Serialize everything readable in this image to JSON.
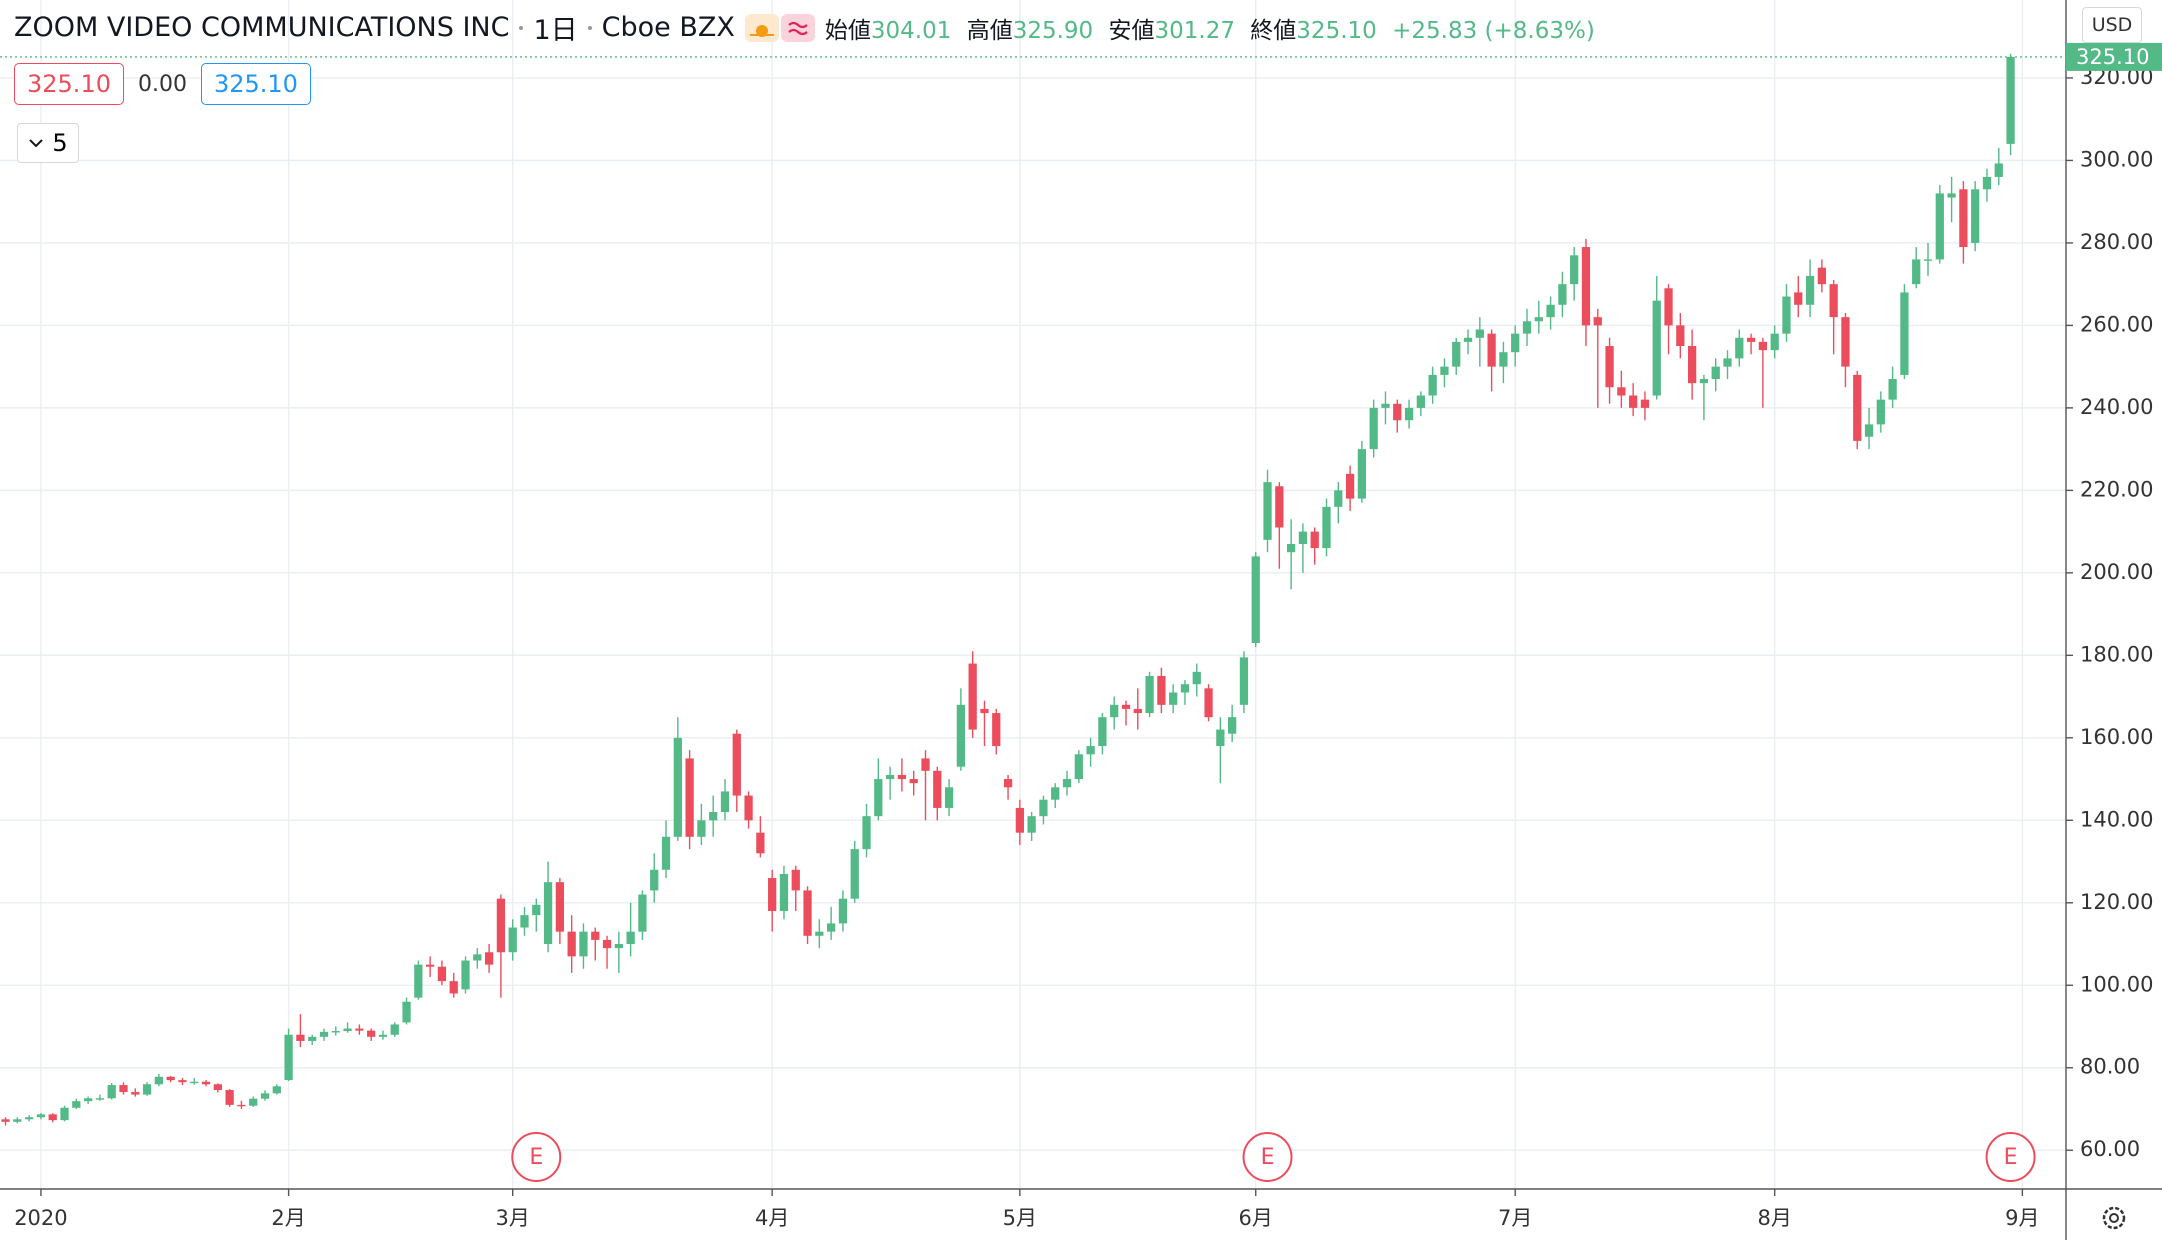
{
  "chart_data": {
    "type": "candlestick",
    "title": "ZOOM VIDEO COMMUNICATIONS INC",
    "interval": "1日",
    "exchange": "Cboe BZX",
    "legend": {
      "open_label": "始値",
      "open": "304.01",
      "high_label": "高値",
      "high": "325.90",
      "low_label": "安値",
      "low": "301.27",
      "close_label": "終値",
      "close": "325.10",
      "change": "+25.83 (+8.63%)"
    },
    "price_boxes": [
      "325.10",
      "0.00",
      "325.10"
    ],
    "study_count": "5",
    "currency": "USD",
    "last_price_label": "325.10",
    "up_color": "#53b987",
    "down_color": "#eb4d5c",
    "grid": true,
    "ylim": [
      50.6,
      338.9
    ],
    "yticks": [
      {
        "value": 60,
        "label": "60.00"
      },
      {
        "value": 80,
        "label": "80.00"
      },
      {
        "value": 100,
        "label": "100.00"
      },
      {
        "value": 120,
        "label": "120.00"
      },
      {
        "value": 140,
        "label": "140.00"
      },
      {
        "value": 160,
        "label": "160.00"
      },
      {
        "value": 180,
        "label": "180.00"
      },
      {
        "value": 200,
        "label": "200.00"
      },
      {
        "value": 220,
        "label": "220.00"
      },
      {
        "value": 240,
        "label": "240.00"
      },
      {
        "value": 260,
        "label": "260.00"
      },
      {
        "value": 280,
        "label": "280.00"
      },
      {
        "value": 300,
        "label": "300.00"
      },
      {
        "value": 320,
        "label": "320.00"
      }
    ],
    "xlim": [
      -0.47,
      174.7
    ],
    "xticks": [
      {
        "value": 3,
        "label": "2020"
      },
      {
        "value": 24,
        "label": "2月"
      },
      {
        "value": 43,
        "label": "3月"
      },
      {
        "value": 65,
        "label": "4月"
      },
      {
        "value": 86,
        "label": "5月"
      },
      {
        "value": 106,
        "label": "6月"
      },
      {
        "value": 128,
        "label": "7月"
      },
      {
        "value": 150,
        "label": "8月"
      },
      {
        "value": 171,
        "label": "9月"
      }
    ],
    "events": [
      {
        "index": 45,
        "label": "E"
      },
      {
        "index": 107,
        "label": "E"
      },
      {
        "index": 170,
        "label": "E"
      }
    ],
    "ohlc": [
      [
        67.5,
        68,
        66,
        66.9
      ],
      [
        66.9,
        68,
        66.5,
        67.5
      ],
      [
        67.5,
        68.5,
        67,
        68
      ],
      [
        68,
        69,
        67.5,
        68.7
      ],
      [
        68.7,
        69,
        66.8,
        67.3
      ],
      [
        67.3,
        70.8,
        67,
        70.3
      ],
      [
        70.3,
        72.5,
        70,
        71.9
      ],
      [
        71.9,
        73,
        71.2,
        72.6
      ],
      [
        72.6,
        73.5,
        72,
        72.6
      ],
      [
        72.6,
        76.3,
        72.3,
        75.8
      ],
      [
        75.8,
        76.5,
        73.5,
        74.1
      ],
      [
        74.1,
        75,
        73,
        73.5
      ],
      [
        73.5,
        76.5,
        73.2,
        76
      ],
      [
        76,
        78.5,
        75.5,
        77.8
      ],
      [
        77.8,
        78,
        76.5,
        77
      ],
      [
        77,
        77.5,
        75.8,
        76.5
      ],
      [
        76.5,
        77.5,
        75.9,
        76.6
      ],
      [
        76.6,
        77,
        75.5,
        76
      ],
      [
        76,
        76.2,
        74,
        74.6
      ],
      [
        74.6,
        74.8,
        70.5,
        71
      ],
      [
        71,
        72,
        70,
        70.8
      ],
      [
        70.8,
        73,
        70.5,
        72.5
      ],
      [
        72.5,
        74.5,
        72,
        73.8
      ],
      [
        73.8,
        76,
        73.5,
        75.5
      ],
      [
        77,
        89.5,
        76.8,
        88
      ],
      [
        88,
        93,
        85,
        86.5
      ],
      [
        86.5,
        88,
        85.5,
        87.5
      ],
      [
        87.5,
        89.5,
        86.5,
        88.7
      ],
      [
        88.7,
        90,
        87.8,
        88.9
      ],
      [
        88.9,
        91,
        88.5,
        89.5
      ],
      [
        89.5,
        90.5,
        88,
        89
      ],
      [
        89,
        89.5,
        86.5,
        87.5
      ],
      [
        87.5,
        89,
        86.8,
        88
      ],
      [
        88,
        91,
        87.5,
        90.5
      ],
      [
        91,
        97,
        90.5,
        96
      ],
      [
        97,
        106,
        96.5,
        105
      ],
      [
        105,
        107,
        102,
        104.5
      ],
      [
        104.5,
        106,
        100,
        101
      ],
      [
        101,
        103,
        97,
        98
      ],
      [
        99,
        107,
        98,
        106
      ],
      [
        106,
        109,
        104,
        107.5
      ],
      [
        108,
        110,
        103,
        105
      ],
      [
        121,
        122,
        97,
        108
      ],
      [
        108,
        116,
        106,
        114
      ],
      [
        114,
        119,
        112,
        117
      ],
      [
        117,
        121,
        113,
        119.5
      ],
      [
        110,
        130,
        108,
        125
      ],
      [
        125,
        126,
        110,
        113
      ],
      [
        113,
        117,
        103,
        107
      ],
      [
        107,
        115,
        104,
        113
      ],
      [
        113,
        114,
        106,
        111
      ],
      [
        111,
        112,
        104,
        109
      ],
      [
        109,
        113,
        103,
        110
      ],
      [
        110,
        120,
        107,
        113
      ],
      [
        113,
        123,
        111,
        122
      ],
      [
        123,
        132,
        120,
        128
      ],
      [
        128,
        140,
        126,
        136
      ],
      [
        136,
        165,
        135,
        160
      ],
      [
        155,
        157,
        133,
        136
      ],
      [
        136,
        144,
        134,
        140
      ],
      [
        140,
        146,
        136,
        142
      ],
      [
        142,
        150,
        140,
        147
      ],
      [
        161,
        162,
        142,
        146
      ],
      [
        146,
        147,
        138,
        140
      ],
      [
        137,
        141,
        131,
        132
      ],
      [
        126,
        128,
        113,
        118
      ],
      [
        118,
        129,
        116,
        127
      ],
      [
        128,
        129,
        118,
        123
      ],
      [
        123,
        124,
        110,
        112
      ],
      [
        112,
        116,
        109,
        113
      ],
      [
        113,
        119,
        111,
        115
      ],
      [
        115,
        123,
        113,
        121
      ],
      [
        121,
        135,
        120,
        133
      ],
      [
        133,
        144,
        131,
        141
      ],
      [
        141,
        155,
        140,
        150
      ],
      [
        150,
        153,
        145,
        151
      ],
      [
        151,
        155,
        147,
        150
      ],
      [
        150,
        152,
        146,
        149
      ],
      [
        155,
        157,
        140,
        152
      ],
      [
        152,
        153,
        140,
        143
      ],
      [
        143,
        150,
        141,
        148
      ],
      [
        153,
        172,
        152,
        168
      ],
      [
        178,
        181,
        160,
        162
      ],
      [
        167,
        169,
        158,
        166
      ],
      [
        166,
        167,
        156,
        158
      ],
      [
        150,
        151,
        145,
        148
      ],
      [
        143,
        145,
        134,
        137
      ],
      [
        137,
        142,
        135,
        141
      ],
      [
        141,
        146,
        139,
        145
      ],
      [
        145,
        149,
        143,
        148
      ],
      [
        148,
        152,
        146,
        150
      ],
      [
        150,
        157,
        149,
        156
      ],
      [
        156,
        160,
        153,
        158
      ],
      [
        158,
        166,
        156,
        165
      ],
      [
        165,
        170,
        162,
        168
      ],
      [
        168,
        169,
        163,
        167
      ],
      [
        167,
        172,
        162,
        166
      ],
      [
        166,
        176,
        165,
        175
      ],
      [
        175,
        177,
        166,
        168
      ],
      [
        168,
        173,
        166,
        171
      ],
      [
        171,
        174,
        168,
        173
      ],
      [
        173,
        178,
        170,
        176
      ],
      [
        172,
        173,
        164,
        165
      ],
      [
        158,
        165,
        149,
        162
      ],
      [
        161,
        168,
        159,
        165
      ],
      [
        168,
        181,
        166,
        179.5
      ],
      [
        183,
        205,
        182,
        204
      ],
      [
        208,
        225,
        205,
        222
      ],
      [
        221,
        222,
        201,
        211
      ],
      [
        205,
        213,
        196,
        207
      ],
      [
        207,
        212,
        200,
        210
      ],
      [
        210,
        211,
        202,
        206
      ],
      [
        206,
        218,
        204,
        216
      ],
      [
        216,
        222,
        212,
        220
      ],
      [
        224,
        226,
        215,
        218
      ],
      [
        218,
        232,
        217,
        230
      ],
      [
        230,
        242,
        228,
        240
      ],
      [
        240,
        244,
        236,
        241
      ],
      [
        241,
        242,
        234,
        237
      ],
      [
        237,
        242,
        235,
        240
      ],
      [
        240,
        244,
        238,
        243
      ],
      [
        243,
        250,
        241,
        248
      ],
      [
        248,
        252,
        245,
        250
      ],
      [
        250,
        257,
        248,
        256
      ],
      [
        256,
        259,
        253,
        257
      ],
      [
        257,
        262,
        250,
        259
      ],
      [
        258,
        259,
        244,
        250
      ],
      [
        250,
        256,
        246,
        253.5
      ],
      [
        253.5,
        260,
        250,
        258
      ],
      [
        258,
        264,
        255,
        261
      ],
      [
        261,
        266,
        258,
        262
      ],
      [
        262,
        267,
        259,
        265
      ],
      [
        265,
        273,
        262,
        270
      ],
      [
        270,
        279,
        266,
        277
      ],
      [
        279,
        281,
        255,
        260
      ],
      [
        262,
        264,
        240,
        260
      ],
      [
        255,
        257,
        241,
        245
      ],
      [
        245,
        249,
        240,
        243
      ],
      [
        243,
        246,
        238,
        240
      ],
      [
        242,
        244,
        237,
        240
      ],
      [
        243,
        272,
        242,
        266
      ],
      [
        269,
        270,
        253,
        260
      ],
      [
        260,
        263,
        252,
        255
      ],
      [
        255,
        259,
        242,
        246
      ],
      [
        246,
        248,
        237,
        247
      ],
      [
        247,
        252,
        244,
        250
      ],
      [
        250,
        254,
        247,
        252
      ],
      [
        252,
        259,
        250,
        257
      ],
      [
        257,
        258,
        253,
        256
      ],
      [
        256,
        257,
        240,
        254
      ],
      [
        254,
        260,
        252,
        258
      ],
      [
        258,
        270,
        256,
        267
      ],
      [
        268,
        272,
        262,
        265
      ],
      [
        265,
        276,
        262,
        272
      ],
      [
        274,
        276,
        268,
        270
      ],
      [
        270,
        271,
        253,
        262
      ],
      [
        262,
        263,
        245,
        250
      ],
      [
        248,
        249,
        230,
        232
      ],
      [
        233,
        240,
        230,
        236
      ],
      [
        236,
        244,
        234,
        242
      ],
      [
        242,
        250,
        240,
        247
      ],
      [
        248,
        270,
        247,
        268
      ],
      [
        270,
        279,
        269,
        276
      ],
      [
        276,
        280,
        272,
        276
      ],
      [
        276,
        294,
        275,
        292
      ],
      [
        291,
        296,
        285,
        292
      ],
      [
        293,
        295,
        275,
        279
      ],
      [
        280,
        295,
        278,
        293
      ],
      [
        293,
        298,
        290,
        296
      ],
      [
        296,
        303,
        294,
        299.27
      ],
      [
        304.01,
        325.9,
        301.27,
        325.1
      ]
    ]
  }
}
